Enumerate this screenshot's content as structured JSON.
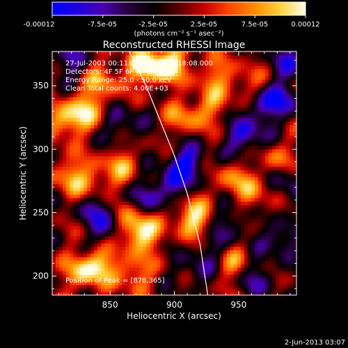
{
  "colorbar": {
    "tick_labels": [
      "-0.00012",
      "-7.5e-05",
      "-2.5e-05",
      "2.5e-05",
      "7.5e-05",
      "0.00012"
    ],
    "range": [
      -0.00012,
      0.00012
    ],
    "units": "(photons cm⁻² s⁻¹ asec⁻²)",
    "colors": [
      "#0000ff",
      "#1e00e0",
      "#4a00b0",
      "#28003c",
      "#000000",
      "#5a0000",
      "#c80000",
      "#ff4600",
      "#ff8c00",
      "#ffd23c",
      "#ffffe6"
    ]
  },
  "chart_data": {
    "type": "heatmap",
    "title": "Reconstructed RHESSI Image",
    "xlabel": "Heliocentric X (arcsec)",
    "ylabel": "Heliocentric Y (arcsec)",
    "xlim": [
      805,
      995
    ],
    "ylim": [
      185,
      377
    ],
    "xticks": [
      850,
      900,
      950
    ],
    "yticks": [
      200,
      250,
      300,
      350
    ],
    "annotations": [
      "27-Jul-2003 00:11:00.000 to 00:18:08.000",
      "Detectors: 4F 5F 6F 7F 8F, Att 0",
      "Energy Range: 25.0 - 50.0 keV",
      "Clean     Total counts: 4.00E+03"
    ],
    "peak_label": "Position of Peak = [878,365]",
    "peak": [
      878,
      365
    ],
    "limb_curve": {
      "x": [
        865,
        878,
        890,
        900,
        910,
        920,
        926
      ],
      "y": [
        377,
        350,
        320,
        295,
        265,
        225,
        185
      ]
    },
    "hot_spots": [
      {
        "x": 878,
        "y": 365,
        "v": 1.0
      },
      {
        "x": 897,
        "y": 368,
        "v": 0.9
      },
      {
        "x": 815,
        "y": 322,
        "v": 0.8
      },
      {
        "x": 832,
        "y": 333,
        "v": 0.7
      },
      {
        "x": 845,
        "y": 355,
        "v": 0.55
      },
      {
        "x": 818,
        "y": 280,
        "v": 0.65
      },
      {
        "x": 838,
        "y": 272,
        "v": 0.55
      },
      {
        "x": 858,
        "y": 288,
        "v": 0.55
      },
      {
        "x": 864,
        "y": 242,
        "v": 0.65
      },
      {
        "x": 875,
        "y": 233,
        "v": 0.85
      },
      {
        "x": 910,
        "y": 250,
        "v": 0.6
      },
      {
        "x": 920,
        "y": 240,
        "v": 0.55
      },
      {
        "x": 908,
        "y": 325,
        "v": 0.55
      },
      {
        "x": 928,
        "y": 335,
        "v": 0.5
      },
      {
        "x": 842,
        "y": 210,
        "v": 0.7
      },
      {
        "x": 868,
        "y": 202,
        "v": 0.6
      },
      {
        "x": 828,
        "y": 203,
        "v": 0.65
      },
      {
        "x": 945,
        "y": 275,
        "v": 0.55
      },
      {
        "x": 963,
        "y": 262,
        "v": 0.5
      },
      {
        "x": 978,
        "y": 292,
        "v": 0.45
      },
      {
        "x": 944,
        "y": 210,
        "v": 0.5
      },
      {
        "x": 932,
        "y": 360,
        "v": 0.5
      },
      {
        "x": 956,
        "y": 351,
        "v": 0.45
      }
    ],
    "cold_spots": [
      {
        "x": 910,
        "y": 290,
        "v": -0.85
      },
      {
        "x": 898,
        "y": 272,
        "v": -0.65
      },
      {
        "x": 955,
        "y": 310,
        "v": -0.8
      },
      {
        "x": 968,
        "y": 335,
        "v": -0.65
      },
      {
        "x": 985,
        "y": 340,
        "v": -0.6
      },
      {
        "x": 818,
        "y": 370,
        "v": -0.55
      },
      {
        "x": 838,
        "y": 255,
        "v": -0.55
      },
      {
        "x": 880,
        "y": 262,
        "v": -0.5
      },
      {
        "x": 850,
        "y": 238,
        "v": -0.65
      },
      {
        "x": 860,
        "y": 320,
        "v": -0.5
      },
      {
        "x": 982,
        "y": 230,
        "v": -0.6
      },
      {
        "x": 965,
        "y": 198,
        "v": -0.5
      },
      {
        "x": 930,
        "y": 228,
        "v": -0.5
      },
      {
        "x": 918,
        "y": 205,
        "v": -0.45
      },
      {
        "x": 990,
        "y": 370,
        "v": -0.6
      },
      {
        "x": 946,
        "y": 248,
        "v": -0.45
      },
      {
        "x": 988,
        "y": 272,
        "v": -0.5
      }
    ]
  },
  "footer": {
    "date": "2-Jun-2013 03:07"
  }
}
